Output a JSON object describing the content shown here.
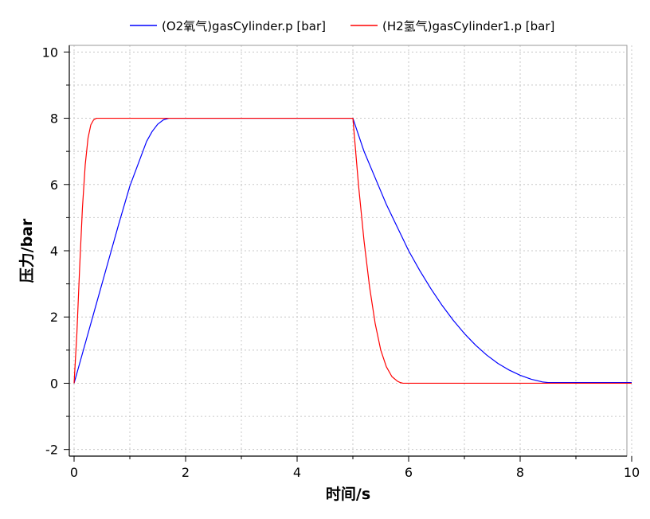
{
  "chart_data": {
    "type": "line",
    "xlabel": "时间/s",
    "ylabel": "压力/bar",
    "xlim": [
      0,
      10
    ],
    "ylim": [
      -2.2,
      10.2
    ],
    "xticks": [
      0,
      2,
      4,
      6,
      8,
      10
    ],
    "yticks": [
      -2,
      0,
      2,
      4,
      6,
      8,
      10
    ],
    "grid": true,
    "legend_position": "top",
    "series": [
      {
        "name": "(O2氧气)gasCylinder.p [bar]",
        "color": "#0000ff",
        "x": [
          0,
          0.1,
          0.2,
          0.4,
          0.6,
          0.8,
          1.0,
          1.2,
          1.3,
          1.4,
          1.5,
          1.6,
          1.7,
          2.0,
          3.0,
          4.0,
          5.0,
          5.2,
          5.4,
          5.6,
          5.8,
          6.0,
          6.2,
          6.4,
          6.6,
          6.8,
          7.0,
          7.2,
          7.4,
          7.6,
          7.8,
          8.0,
          8.2,
          8.4,
          8.5,
          9.0,
          10.0
        ],
        "y": [
          0,
          0.6,
          1.2,
          2.4,
          3.6,
          4.8,
          5.95,
          6.85,
          7.3,
          7.6,
          7.82,
          7.95,
          8.0,
          8.0,
          8.0,
          8.0,
          8.0,
          7.0,
          6.2,
          5.4,
          4.7,
          4.0,
          3.4,
          2.85,
          2.35,
          1.9,
          1.5,
          1.15,
          0.85,
          0.6,
          0.4,
          0.24,
          0.12,
          0.04,
          0.02,
          0.02,
          0.02
        ]
      },
      {
        "name": "(H2氢气)gasCylinder1.p [bar]",
        "color": "#ff0000",
        "x": [
          0,
          0.05,
          0.1,
          0.15,
          0.2,
          0.25,
          0.3,
          0.35,
          0.4,
          0.45,
          0.5,
          1.0,
          2.0,
          3.0,
          4.0,
          5.0,
          5.1,
          5.2,
          5.3,
          5.4,
          5.5,
          5.6,
          5.7,
          5.8,
          5.85,
          5.9,
          6.0,
          7.0,
          8.0,
          9.0,
          10.0
        ],
        "y": [
          0,
          1.5,
          3.5,
          5.3,
          6.6,
          7.4,
          7.8,
          7.95,
          8.0,
          8.0,
          8.0,
          8.0,
          8.0,
          8.0,
          8.0,
          8.0,
          6.0,
          4.3,
          2.9,
          1.8,
          1.0,
          0.5,
          0.2,
          0.06,
          0.02,
          0.0,
          0.0,
          0.0,
          0.0,
          0.0,
          0.0
        ]
      }
    ]
  }
}
